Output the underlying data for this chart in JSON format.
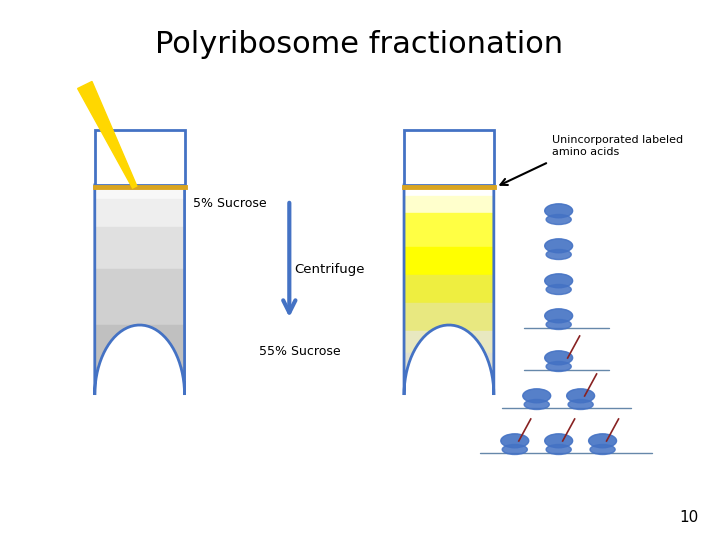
{
  "title": "Polyribosome fractionation",
  "title_fontsize": 22,
  "background_color": "#ffffff",
  "label_5pct": "5% Sucrose",
  "label_55pct": "55% Sucrose",
  "label_centrifuge": "Centrifuge",
  "label_unincorp": "Unincorporated labeled\namino acids",
  "page_num": "10",
  "arrow_color": "#4472C4",
  "ribosome_color_dark": "#4472C4",
  "ribosome_color_light": "#6699CC",
  "sucrose_line_color": "#DAA520",
  "needle_color": "#FFD700"
}
